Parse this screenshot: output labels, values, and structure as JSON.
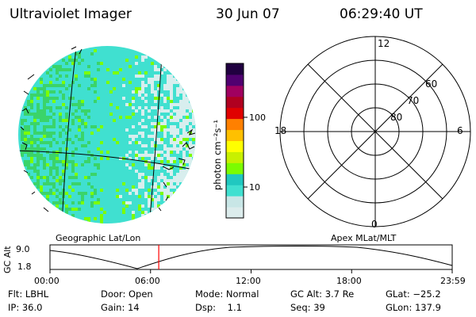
{
  "header": {
    "title": "Ultraviolet Imager",
    "date": "30 Jun 07",
    "time": "06:29:40 UT"
  },
  "colorbar": {
    "label": "photon cm⁻²s⁻¹",
    "ticks": [
      {
        "value": 100,
        "label": "100"
      },
      {
        "value": 10,
        "label": "10"
      }
    ],
    "colors": [
      "#dcecec",
      "#c8e6e6",
      "#40e0d0",
      "#20c8c0",
      "#7cfc00",
      "#c8f000",
      "#ffff00",
      "#ffc000",
      "#ff8000",
      "#e00000",
      "#b00020",
      "#a00060",
      "#500070",
      "#200040"
    ]
  },
  "left_panel": {
    "caption": "Geographic Lat/Lon"
  },
  "right_panel": {
    "caption": "Apex MLat/MLT",
    "mlt_labels": {
      "top": "12",
      "bottom": "0",
      "left": "18",
      "right": "6"
    },
    "lat_labels": [
      "60",
      "70",
      "80"
    ]
  },
  "altitude_plot": {
    "ylabel": "GC Alt",
    "yticks": [
      "9.0",
      "1.8"
    ],
    "xticks": [
      "00:00",
      "06:00",
      "12:00",
      "18:00",
      "23:59"
    ],
    "marker_time_hours": 6.49
  },
  "info": {
    "row1": {
      "flt": "Flt: LBHL",
      "door": "Door: Open",
      "mode": "Mode: Normal",
      "gcalt": "GC Alt: 3.7 Re",
      "glat": "GLat: −25.2"
    },
    "row2": {
      "ip": "IP: 36.0",
      "gain": "Gain: 14",
      "dsp": "Dsp:    1.1",
      "seq": "Seq: 39",
      "glon": "GLon: 137.9"
    }
  },
  "colors": {
    "earth_base": "#40e0d0",
    "earth_green": "#3ad46a",
    "earth_pale": "#d8eeee",
    "marker": "#ff0000"
  }
}
